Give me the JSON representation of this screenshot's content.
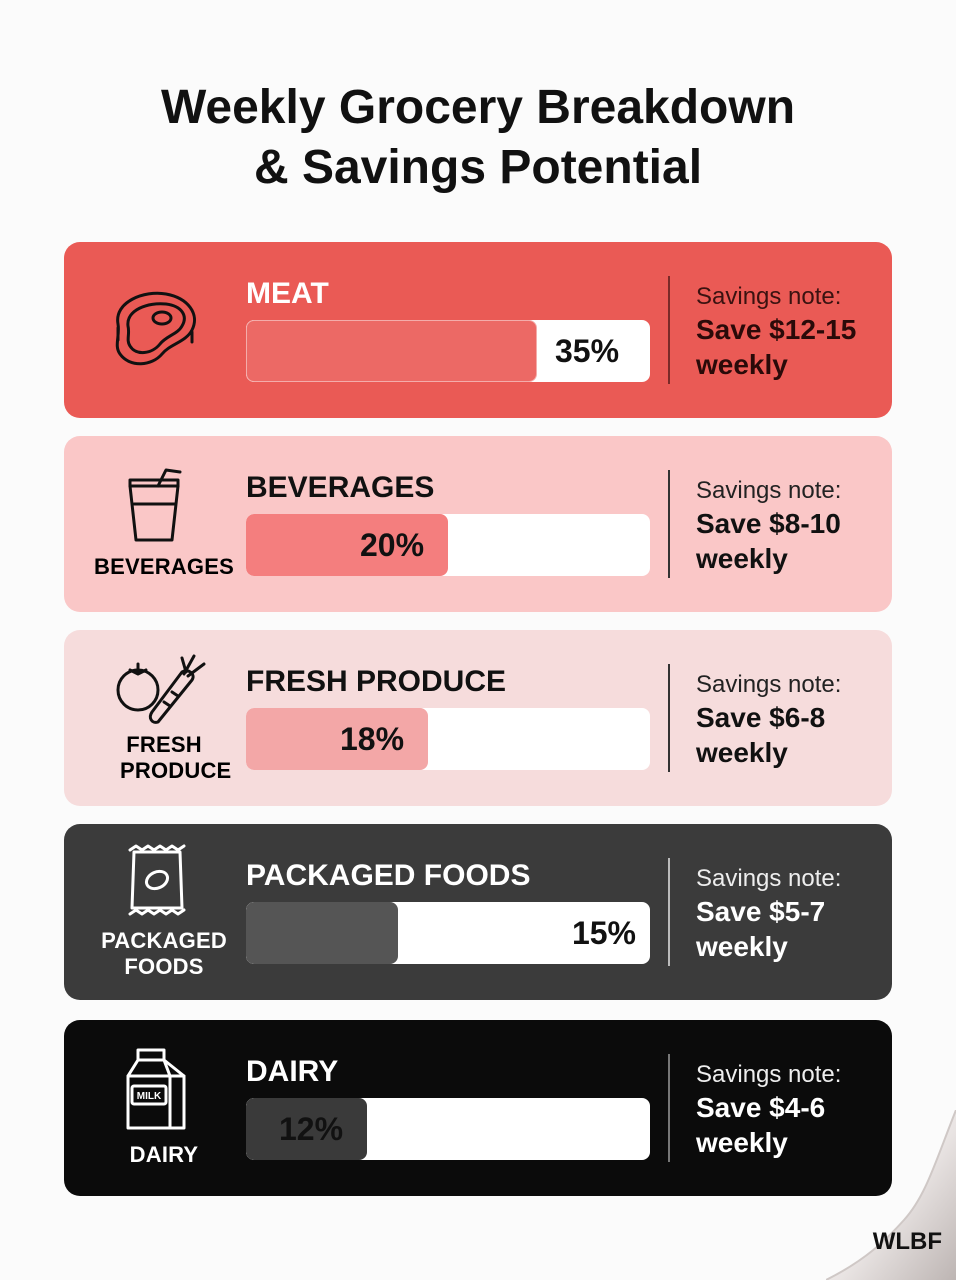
{
  "title_line1": "Weekly Grocery Breakdown",
  "title_line2": "& Savings Potential",
  "brand": "WLBF",
  "colors": {
    "meat": "#ea5a55",
    "beverages": "#fac7c7",
    "produce": "#f6dcdc",
    "packaged": "#3b3b3b",
    "dairy": "#0b0b0b"
  },
  "chart_data": {
    "type": "bar",
    "title": "Weekly Grocery Breakdown & Savings Potential",
    "categories": [
      "MEAT",
      "BEVERAGES",
      "FRESH PRODUCE",
      "PACKAGED FOODS",
      "DAIRY"
    ],
    "values": [
      35,
      20,
      18,
      15,
      12
    ],
    "unit": "%",
    "value_labels": [
      "35%",
      "20%",
      "18%",
      "15%",
      "12%"
    ]
  },
  "cards": [
    {
      "id": "meat",
      "label": "MEAT",
      "caption": "",
      "value_label": "35%",
      "percent": 35,
      "icon": "steak-icon",
      "note_label": "Savings note:",
      "note_text": "Save $12-15 weekly"
    },
    {
      "id": "beverages",
      "label": "BEVERAGES",
      "caption": "BEVERAGES",
      "value_label": "20%",
      "percent": 20,
      "icon": "drink-cup-icon",
      "note_label": "Savings note:",
      "note_text": "Save $8-10 weekly"
    },
    {
      "id": "produce",
      "label": "FRESH PRODUCE",
      "caption": "FRESH PRODUCE",
      "value_label": "18%",
      "percent": 18,
      "icon": "tomato-carrot-icon",
      "note_label": "Savings note:",
      "note_text": "Save $6-8 weekly"
    },
    {
      "id": "packaged",
      "label": "PACKAGED FOODS",
      "caption": "PACKAGED FOODS",
      "value_label": "15%",
      "percent": 15,
      "icon": "snack-bag-icon",
      "note_label": "Savings note:",
      "note_text": "Save $5-7 weekly"
    },
    {
      "id": "dairy",
      "label": "DAIRY",
      "caption": "DAIRY",
      "icon_text": "MILK",
      "value_label": "12%",
      "percent": 12,
      "icon": "milk-carton-icon",
      "note_label": "Savings note:",
      "note_text": "Save $4-6 weekly"
    }
  ]
}
